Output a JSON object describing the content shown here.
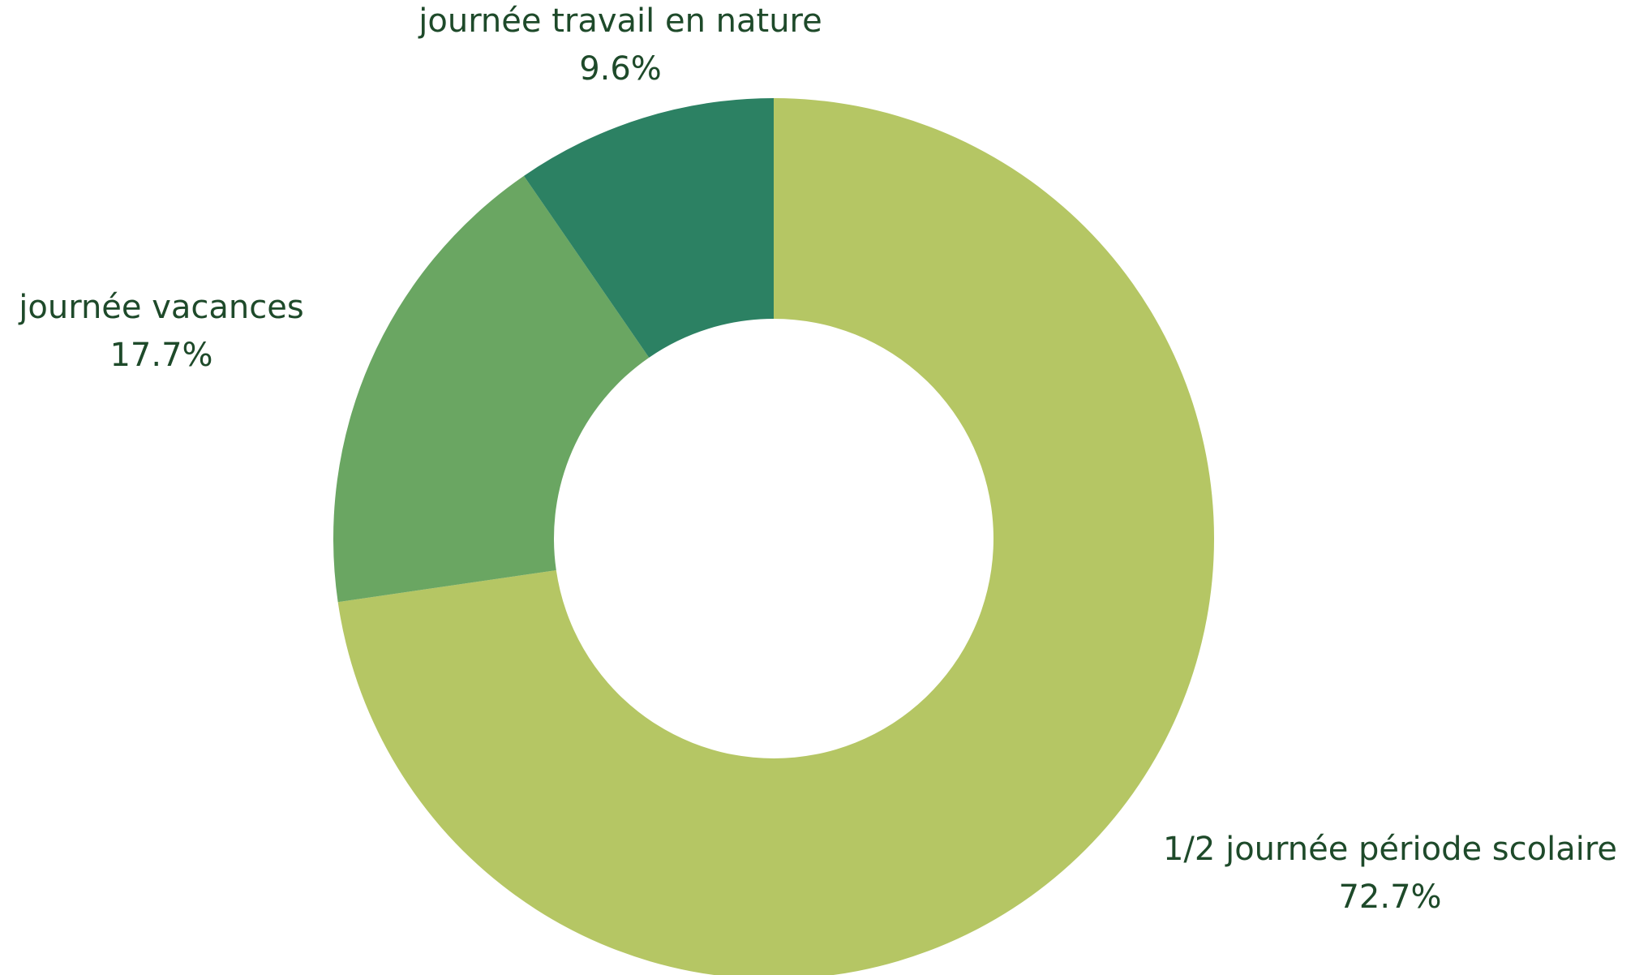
{
  "chart_data": {
    "type": "donut",
    "categories": [
      "1/2 journée période scolaire",
      "journée vacances",
      "journée travail en nature"
    ],
    "values": [
      72.7,
      17.7,
      9.6
    ],
    "value_labels": [
      "72.7%",
      "17.7%",
      "9.6%"
    ],
    "colors": [
      "#b5c664",
      "#6aa662",
      "#2c8163"
    ]
  }
}
